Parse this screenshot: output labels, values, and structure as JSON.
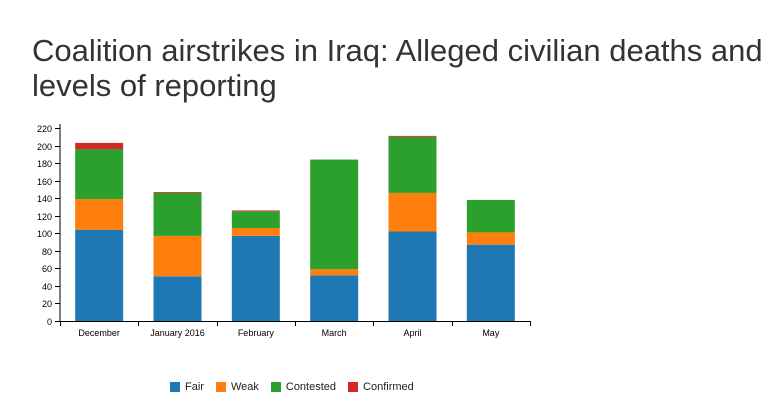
{
  "title": "Coalition airstrikes in Iraq: Alleged civilian deaths and levels of reporting",
  "chart_data": {
    "type": "bar",
    "stacked": true,
    "title": "Coalition airstrikes in Iraq: Alleged civilian deaths and levels of reporting",
    "xlabel": "",
    "ylabel": "",
    "categories": [
      "December",
      "January 2016",
      "February",
      "March",
      "April",
      "May"
    ],
    "series": [
      {
        "name": "Fair",
        "color": "#1f77b4",
        "values": [
          104,
          51,
          97,
          52,
          102,
          87
        ]
      },
      {
        "name": "Weak",
        "color": "#ff7f0e",
        "values": [
          35,
          46,
          9,
          7,
          44,
          14
        ]
      },
      {
        "name": "Contested",
        "color": "#2ca02c",
        "values": [
          57,
          49,
          19,
          125,
          64,
          37
        ]
      },
      {
        "name": "Confirmed",
        "color": "#d62728",
        "values": [
          7,
          1,
          1,
          0,
          1,
          0
        ]
      }
    ],
    "ylim": [
      0,
      220
    ],
    "yticks": [
      0,
      20,
      40,
      60,
      80,
      100,
      120,
      140,
      160,
      180,
      200,
      220
    ],
    "grid": false,
    "legend_position": "bottom"
  }
}
